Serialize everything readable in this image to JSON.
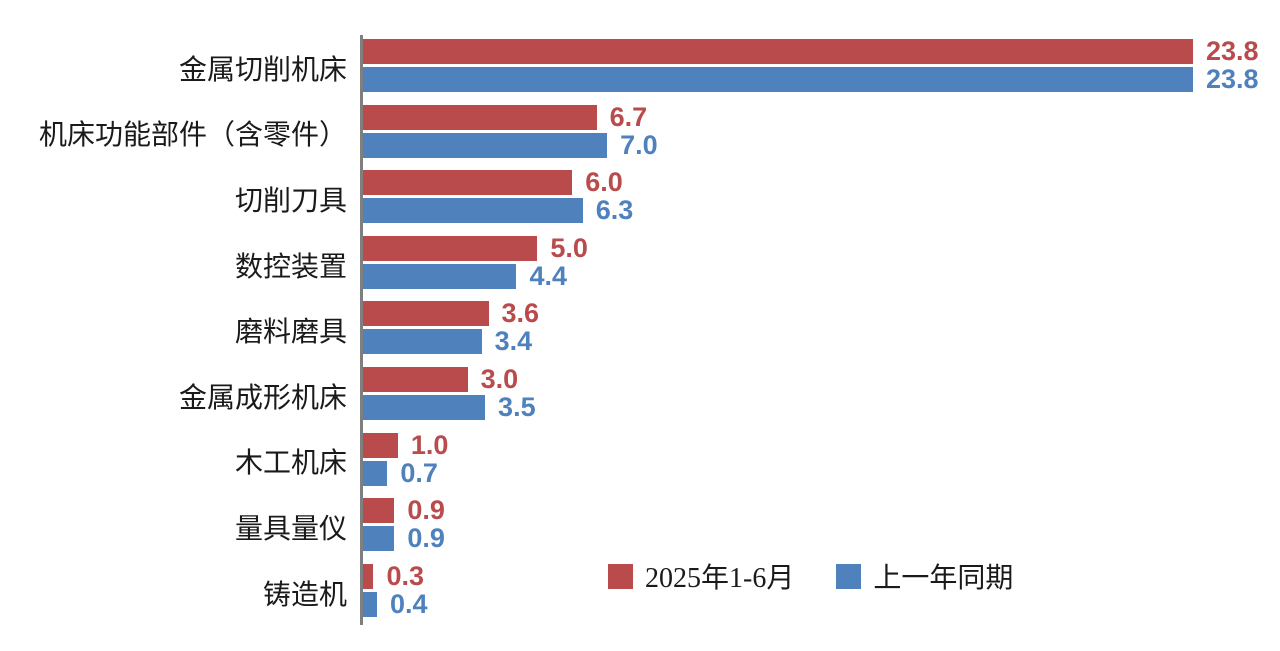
{
  "chart_data": {
    "type": "bar",
    "orientation": "horizontal",
    "title": "",
    "xlabel": "",
    "ylabel": "",
    "xlim": [
      0,
      23.8
    ],
    "grid": false,
    "value_labels": true,
    "axis_color": "#7f7f7f",
    "legend_position": "bottom-right-inside",
    "categories": [
      "金属切削机床",
      "机床功能部件（含零件）",
      "切削刀具",
      "数控装置",
      "磨料磨具",
      "金属成形机床",
      "木工机床",
      "量具量仪",
      "铸造机"
    ],
    "series": [
      {
        "name": "2025年1-6月",
        "color": "#b94b4c",
        "values": [
          23.8,
          6.7,
          6.0,
          5.0,
          3.6,
          3.0,
          1.0,
          0.9,
          0.3
        ]
      },
      {
        "name": "上一年同期",
        "color": "#4f81bd",
        "values": [
          23.8,
          7.0,
          6.3,
          4.4,
          3.4,
          3.5,
          0.7,
          0.9,
          0.4
        ]
      }
    ]
  }
}
